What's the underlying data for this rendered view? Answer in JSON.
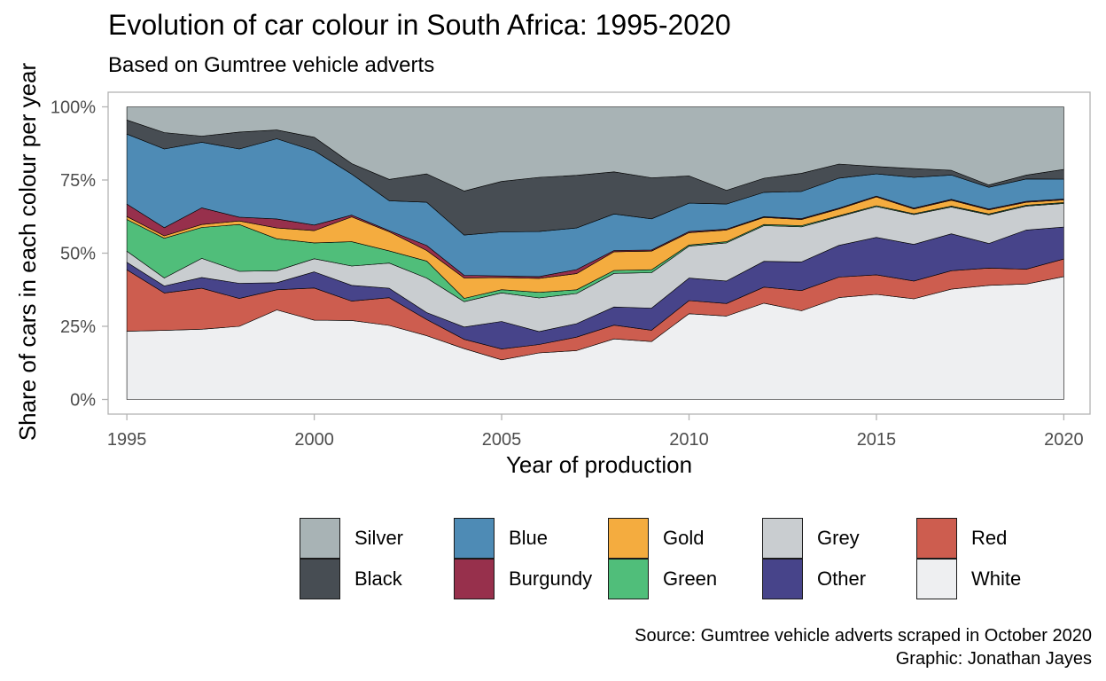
{
  "chart_data": {
    "type": "area",
    "title": "Evolution of car colour in South Africa: 1995-2020",
    "subtitle": "Based on Gumtree vehicle adverts",
    "xlabel": "Year of production",
    "ylabel": "Share of cars in each colour per year",
    "x": [
      1995,
      1996,
      1997,
      1998,
      1999,
      2000,
      2001,
      2002,
      2003,
      2004,
      2005,
      2006,
      2007,
      2008,
      2009,
      2010,
      2011,
      2012,
      2013,
      2014,
      2015,
      2016,
      2017,
      2018,
      2019,
      2020
    ],
    "x_ticks": [
      "1995",
      "2000",
      "2005",
      "2010",
      "2015",
      "2020"
    ],
    "x_tick_values": [
      1995,
      2000,
      2005,
      2010,
      2015,
      2020
    ],
    "y_ticks": [
      "0%",
      "25%",
      "50%",
      "75%",
      "100%"
    ],
    "y_tick_values": [
      0,
      25,
      50,
      75,
      100
    ],
    "xlim": [
      1994.5,
      2020.7
    ],
    "ylim": [
      -5,
      105
    ],
    "stacked": true,
    "grid": false,
    "legend_position": "bottom",
    "series": [
      {
        "name": "White",
        "color": "#eeeff1",
        "values": [
          23.3,
          23.6,
          24.0,
          25.0,
          30.6,
          27.1,
          27.0,
          25.3,
          21.8,
          17.4,
          13.5,
          15.9,
          16.7,
          20.7,
          19.9,
          29.3,
          28.5,
          32.9,
          30.3,
          34.7,
          35.9,
          34.4,
          37.7,
          39.0,
          39.1,
          42.0
        ]
      },
      {
        "name": "Red",
        "color": "#cd5d4f",
        "values": [
          21.0,
          12.8,
          14.0,
          9.5,
          6.9,
          11.0,
          6.6,
          9.5,
          5.5,
          3.2,
          3.7,
          2.9,
          4.6,
          4.7,
          3.9,
          4.5,
          4.3,
          5.5,
          6.9,
          7.0,
          6.7,
          6.1,
          6.3,
          5.9,
          5.0,
          6.0
        ]
      },
      {
        "name": "Other",
        "color": "#47448a",
        "values": [
          2.6,
          2.4,
          3.7,
          5.2,
          2.4,
          5.5,
          5.4,
          3.2,
          2.4,
          4.2,
          9.4,
          4.4,
          4.6,
          6.2,
          7.6,
          7.7,
          7.7,
          8.8,
          9.8,
          10.8,
          12.8,
          12.5,
          12.6,
          8.4,
          13.3,
          10.9
        ]
      },
      {
        "name": "Grey",
        "color": "#c9cdd0",
        "values": [
          3.8,
          2.7,
          6.5,
          4.1,
          4.1,
          4.5,
          6.6,
          8.6,
          11.8,
          8.7,
          9.7,
          11.5,
          10.3,
          11.5,
          12.2,
          10.9,
          13.0,
          12.2,
          12.0,
          9.8,
          10.5,
          10.2,
          9.2,
          9.8,
          8.1,
          8.1
        ]
      },
      {
        "name": "Green",
        "color": "#50be7a",
        "values": [
          10.8,
          13.6,
          10.6,
          16.0,
          10.9,
          5.4,
          8.3,
          4.2,
          5.8,
          1.1,
          1.1,
          1.9,
          1.3,
          1.0,
          1.0,
          0.4,
          0.4,
          0.4,
          0.4,
          0.3,
          0.3,
          0.3,
          0.3,
          0.3,
          0.3,
          0.3
        ]
      },
      {
        "name": "Gold",
        "color": "#f4ac3f",
        "values": [
          1.0,
          0.8,
          1.0,
          1.2,
          3.7,
          4.2,
          8.5,
          6.5,
          3.6,
          7.0,
          4.1,
          4.8,
          5.5,
          6.4,
          6.4,
          4.2,
          4.0,
          2.4,
          2.1,
          2.3,
          3.0,
          1.6,
          2.0,
          1.4,
          1.0,
          0.9
        ]
      },
      {
        "name": "Burgundy",
        "color": "#97304c",
        "values": [
          4.3,
          2.8,
          5.7,
          1.3,
          3.1,
          1.9,
          0.6,
          0.4,
          1.7,
          0.9,
          0.6,
          0.6,
          1.4,
          0.4,
          0.4,
          0.4,
          0.3,
          0.3,
          0.3,
          0.3,
          0.3,
          0.3,
          0.3,
          0.3,
          0.3,
          0.3
        ]
      },
      {
        "name": "Blue",
        "color": "#4e8bb5",
        "values": [
          23.9,
          26.9,
          22.4,
          23.3,
          27.4,
          25.4,
          14.0,
          10.2,
          14.8,
          13.8,
          15.0,
          15.4,
          14.2,
          12.5,
          10.7,
          9.7,
          8.6,
          8.3,
          9.3,
          10.2,
          7.6,
          10.5,
          8.3,
          7.4,
          7.6,
          6.8
        ]
      },
      {
        "name": "Black",
        "color": "#474d53",
        "values": [
          4.8,
          5.6,
          2.1,
          5.8,
          3.0,
          4.6,
          3.6,
          7.3,
          9.7,
          15.1,
          17.2,
          18.5,
          18.0,
          14.4,
          14.1,
          9.3,
          4.7,
          4.8,
          6.2,
          4.8,
          2.5,
          3.0,
          1.6,
          0.8,
          1.3,
          3.3
        ]
      },
      {
        "name": "Silver",
        "color": "#a8b3b5",
        "values": [
          4.5,
          8.8,
          10.0,
          8.6,
          7.9,
          10.4,
          19.4,
          24.8,
          22.9,
          28.8,
          25.4,
          24.1,
          23.4,
          22.2,
          24.4,
          23.6,
          28.5,
          24.4,
          22.7,
          19.5,
          20.4,
          21.1,
          21.7,
          26.7,
          23.1,
          21.4
        ]
      }
    ],
    "legend_order": [
      "Silver",
      "Blue",
      "Gold",
      "Grey",
      "Red",
      "Black",
      "Burgundy",
      "Green",
      "Other",
      "White"
    ],
    "caption": [
      "Source: Gumtree vehicle adverts scraped in October 2020",
      "Graphic: Jonathan Jayes"
    ]
  }
}
